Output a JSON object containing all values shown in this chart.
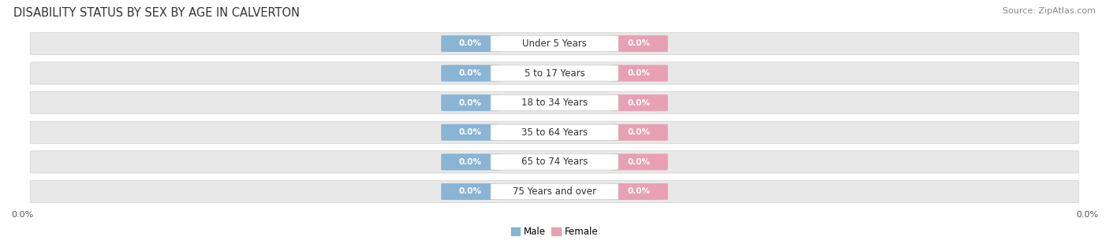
{
  "title": "DISABILITY STATUS BY SEX BY AGE IN CALVERTON",
  "source": "Source: ZipAtlas.com",
  "categories": [
    "Under 5 Years",
    "5 to 17 Years",
    "18 to 34 Years",
    "35 to 64 Years",
    "65 to 74 Years",
    "75 Years and over"
  ],
  "male_values": [
    0.0,
    0.0,
    0.0,
    0.0,
    0.0,
    0.0
  ],
  "female_values": [
    0.0,
    0.0,
    0.0,
    0.0,
    0.0,
    0.0
  ],
  "male_color": "#8ab4d4",
  "female_color": "#e8a0b4",
  "male_label": "Male",
  "female_label": "Female",
  "row_bg_color": "#e8e8e8",
  "row_bg_edge_color": "#d0d0d0",
  "title_color": "#333333",
  "title_fontsize": 10.5,
  "source_fontsize": 8,
  "category_fontsize": 8.5,
  "value_fontsize": 7.5,
  "background_color": "#ffffff",
  "xlim": [
    -1.0,
    1.0
  ],
  "xtick_left": "0.0%",
  "xtick_right": "0.0%"
}
